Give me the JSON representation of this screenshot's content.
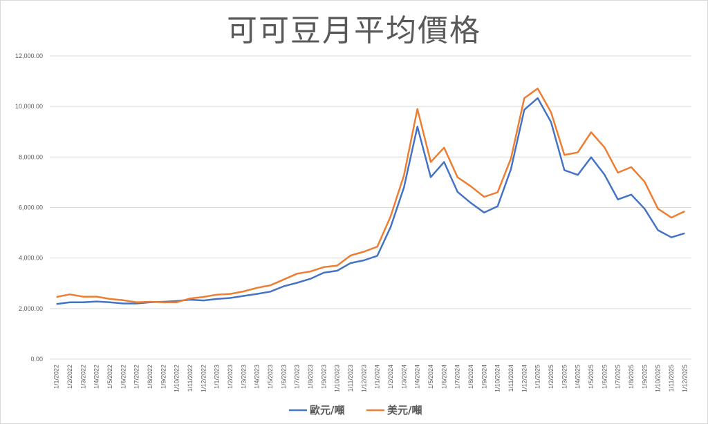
{
  "chart_data": {
    "type": "line",
    "title": "可可豆月平均價格",
    "ylim": [
      0,
      12000
    ],
    "y_ticks": [
      "0.00",
      "2,000.00",
      "4,000.00",
      "6,000.00",
      "8,000.00",
      "10,000.00",
      "12,000.00"
    ],
    "grid": true,
    "legend_position": "bottom",
    "categories": [
      "1/1/2022",
      "1/2/2022",
      "1/3/2022",
      "1/4/2022",
      "1/5/2022",
      "1/6/2022",
      "1/7/2022",
      "1/8/2022",
      "1/9/2022",
      "1/10/2022",
      "1/11/2022",
      "1/12/2022",
      "1/1/2023",
      "1/2/2023",
      "1/3/2023",
      "1/4/2023",
      "1/5/2023",
      "1/6/2023",
      "1/7/2023",
      "1/8/2023",
      "1/9/2023",
      "1/10/2023",
      "1/11/2023",
      "1/12/2023",
      "1/1/2024",
      "1/2/2024",
      "1/3/2024",
      "1/4/2024",
      "1/5/2024",
      "1/6/2024",
      "1/7/2024",
      "1/8/2024",
      "1/9/2024",
      "1/10/2024",
      "1/11/2024",
      "1/12/2024",
      "1/1/2025",
      "1/2/2025",
      "1/3/2025",
      "1/4/2025",
      "1/5/2025",
      "1/6/2025",
      "1/7/2025",
      "1/8/2025",
      "1/9/2025",
      "1/10/2025",
      "1/11/2025",
      "1/12/2025"
    ],
    "series": [
      {
        "name": "歐元/噸",
        "color": "#4472c4",
        "values": [
          2180,
          2250,
          2250,
          2280,
          2250,
          2200,
          2200,
          2250,
          2270,
          2300,
          2350,
          2320,
          2380,
          2420,
          2500,
          2580,
          2670,
          2880,
          3020,
          3180,
          3420,
          3500,
          3800,
          3910,
          4090,
          5230,
          6800,
          9200,
          7200,
          7800,
          6620,
          6180,
          5800,
          6050,
          7520,
          9870,
          10330,
          9380,
          7480,
          7290,
          7990,
          7300,
          6320,
          6510,
          5950,
          5100,
          4820,
          4980
        ]
      },
      {
        "name": "美元/噸",
        "color": "#ed7d31",
        "values": [
          2460,
          2560,
          2470,
          2470,
          2380,
          2330,
          2250,
          2270,
          2250,
          2250,
          2400,
          2460,
          2550,
          2580,
          2680,
          2820,
          2920,
          3150,
          3380,
          3470,
          3640,
          3700,
          4100,
          4250,
          4450,
          5650,
          7280,
          9900,
          7800,
          8370,
          7200,
          6840,
          6420,
          6600,
          7940,
          10330,
          10710,
          9770,
          8080,
          8180,
          8980,
          8380,
          7380,
          7600,
          7020,
          5950,
          5600,
          5850
        ]
      }
    ]
  }
}
